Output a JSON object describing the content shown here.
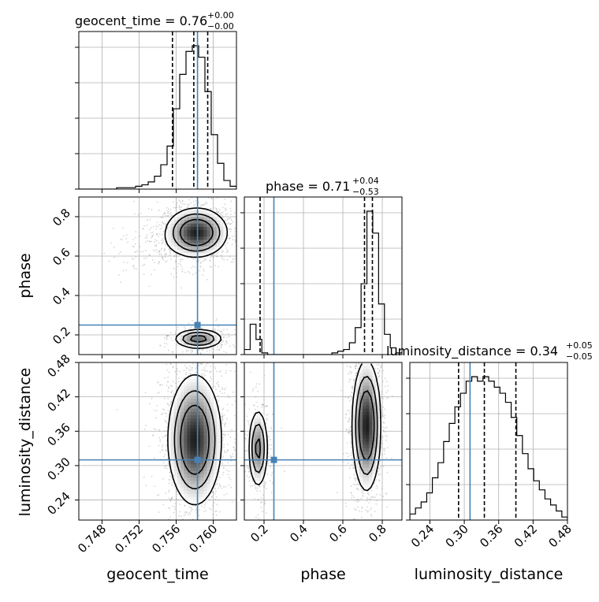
{
  "chart_data": {
    "type": "corner",
    "injection_color": "#4682b4",
    "parameters": [
      {
        "name": "geocent_time",
        "range": [
          0.7455,
          0.7625
        ],
        "ticks": [
          "0.748",
          "0.752",
          "0.756",
          "0.760"
        ],
        "tick_values": [
          0.748,
          0.752,
          0.756,
          0.76
        ],
        "injection": 0.7583,
        "quantiles": [
          0.7556,
          0.7579,
          0.7594
        ],
        "title": {
          "prefix": "geocent_time = ",
          "median": "0.76",
          "plus": "+0.00",
          "minus": "−0.00"
        },
        "hist_counts": [
          0,
          0,
          0,
          0,
          0,
          0,
          1,
          1,
          1,
          2,
          3,
          5,
          9,
          17,
          30,
          56,
          80,
          96,
          100,
          92,
          68,
          38,
          18,
          6,
          2
        ]
      },
      {
        "name": "phase",
        "range": [
          0.1,
          0.9
        ],
        "ticks": [
          "0.2",
          "0.4",
          "0.6",
          "0.8"
        ],
        "tick_values": [
          0.2,
          0.4,
          0.6,
          0.8
        ],
        "injection": 0.25,
        "quantiles": [
          0.18,
          0.71,
          0.75
        ],
        "title": {
          "prefix": "phase = ",
          "median": "0.71",
          "plus": "+0.04",
          "minus": "−0.53"
        },
        "hist_counts": [
          3,
          18,
          9,
          1,
          0,
          0,
          0,
          0,
          0,
          0,
          0,
          0,
          0,
          0,
          0,
          1,
          2,
          3,
          7,
          16,
          42,
          85,
          72,
          30,
          12,
          4,
          1
        ]
      },
      {
        "name": "luminosity_distance",
        "range": [
          0.205,
          0.48
        ],
        "ticks": [
          "0.24",
          "0.30",
          "0.36",
          "0.42",
          "0.48"
        ],
        "tick_values": [
          0.24,
          0.3,
          0.36,
          0.42,
          0.48
        ],
        "injection": 0.31,
        "quantiles": [
          0.29,
          0.335,
          0.39
        ],
        "title": {
          "prefix": "luminosity_distance = ",
          "median": "0.34",
          "plus": "+0.05",
          "minus": "−0.05"
        },
        "hist_counts": [
          4,
          8,
          12,
          18,
          28,
          38,
          52,
          64,
          75,
          84,
          92,
          95,
          92,
          95,
          92,
          88,
          84,
          78,
          68,
          56,
          44,
          34,
          26,
          20,
          14,
          10,
          6,
          2
        ]
      }
    ],
    "pairs": {
      "phase_vs_geocent_time": {
        "modes": [
          {
            "center": [
              0.7582,
              0.72
            ],
            "spread": [
              0.0016,
              0.06
            ],
            "weight": 0.77
          },
          {
            "center": [
              0.7584,
              0.18
            ],
            "spread": [
              0.0013,
              0.025
            ],
            "weight": 0.18
          },
          {
            "center": [
              0.7535,
              0.63
            ],
            "spread": [
              0.0025,
              0.06
            ],
            "weight": 0.05
          }
        ]
      },
      "luminosity_distance_vs_geocent_time": {
        "modes": [
          {
            "center": [
              0.758,
              0.345
            ],
            "spread": [
              0.0014,
              0.055
            ],
            "weight": 1.0
          }
        ]
      },
      "luminosity_distance_vs_phase": {
        "modes": [
          {
            "center": [
              0.72,
              0.37
            ],
            "spread": [
              0.035,
              0.055
            ],
            "weight": 0.78
          },
          {
            "center": [
              0.17,
              0.33
            ],
            "spread": [
              0.025,
              0.035
            ],
            "weight": 0.22
          }
        ]
      }
    }
  }
}
